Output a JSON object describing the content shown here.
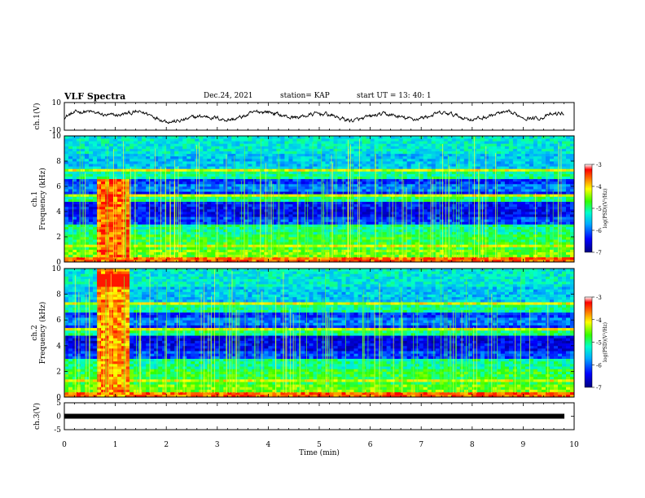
{
  "header": {
    "title": "VLF Spectra",
    "date": "Dec.24, 2021",
    "station": "station= KAP",
    "start": "start  UT =   13: 40: 1"
  },
  "chart_data": [
    {
      "type": "line",
      "panel": "ch1-waveform",
      "ylabel": "ch.1(V)",
      "ylim": [
        -10,
        10
      ],
      "yticks": [
        "10",
        "-10"
      ],
      "x_range_min": [
        0,
        9.8
      ],
      "description_values": "noisy trace oscillating mostly between -3 and +4 V"
    },
    {
      "type": "heatmap",
      "panel": "ch1-spectrogram",
      "ylabel": "ch.1\nFrequency (kHz)",
      "ylim": [
        0,
        10
      ],
      "yticks": [
        "0",
        "2",
        "4",
        "6",
        "8",
        "10"
      ],
      "colorbar": {
        "label": "log(PSD)(V²/Hz)",
        "range": [
          -7,
          -3
        ],
        "ticks": [
          "-3",
          "-4",
          "-5",
          "-6",
          "-7"
        ]
      },
      "burst_interval_min": [
        0.65,
        1.25
      ]
    },
    {
      "type": "heatmap",
      "panel": "ch2-spectrogram",
      "ylabel": "ch.2\nFrequency (kHz)",
      "ylim": [
        0,
        10
      ],
      "yticks": [
        "0",
        "2",
        "4",
        "6",
        "8",
        "10"
      ],
      "colorbar": {
        "label": "log(PSD)(V²/Hz)",
        "range": [
          -7,
          -3
        ],
        "ticks": [
          "-3",
          "-4",
          "-5",
          "-6",
          "-7"
        ]
      },
      "burst_interval_min": [
        0.65,
        1.25
      ]
    },
    {
      "type": "line",
      "panel": "ch3-waveform",
      "ylabel": "ch.3(V)",
      "ylim": [
        -5,
        5
      ],
      "yticks": [
        "5",
        "0",
        "-5"
      ],
      "constant_value": 0
    }
  ],
  "xaxis": {
    "label": "Time  (min)",
    "range": [
      0,
      10
    ],
    "ticks": [
      "0",
      "1",
      "2",
      "3",
      "4",
      "5",
      "6",
      "7",
      "8",
      "9",
      "10"
    ]
  }
}
